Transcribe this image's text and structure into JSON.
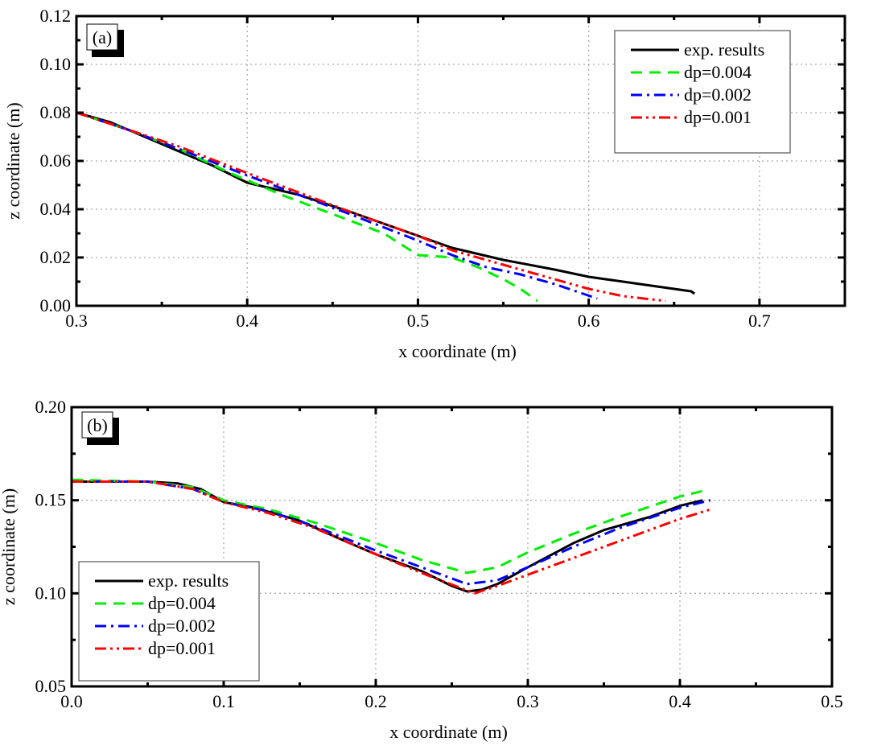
{
  "chart_data": [
    {
      "type": "line",
      "panel_label": "(a)",
      "xlabel": "x coordinate (m)",
      "ylabel": "z coordinate (m)",
      "xlim": [
        0.3,
        0.75
      ],
      "ylim": [
        0.0,
        0.12
      ],
      "xticks": [
        "0.3",
        "0.4",
        "0.5",
        "0.6",
        "0.7"
      ],
      "xtick_values": [
        0.3,
        0.4,
        0.5,
        0.6,
        0.7
      ],
      "yticks": [
        "0.00",
        "0.02",
        "0.04",
        "0.06",
        "0.08",
        "0.10",
        "0.12"
      ],
      "ytick_values": [
        0.0,
        0.02,
        0.04,
        0.06,
        0.08,
        0.1,
        0.12
      ],
      "grid": true,
      "legend_position": "top-right",
      "series": [
        {
          "name": "exp. results",
          "color": "#000000",
          "style": "solid",
          "x": [
            0.3,
            0.32,
            0.35,
            0.38,
            0.4,
            0.43,
            0.46,
            0.5,
            0.52,
            0.55,
            0.58,
            0.6,
            0.63,
            0.66,
            0.662
          ],
          "y": [
            0.08,
            0.076,
            0.067,
            0.058,
            0.051,
            0.046,
            0.039,
            0.029,
            0.024,
            0.019,
            0.015,
            0.012,
            0.009,
            0.006,
            0.005
          ]
        },
        {
          "name": "dp=0.004",
          "color": "#00ee00",
          "style": "dash",
          "x": [
            0.3,
            0.33,
            0.36,
            0.39,
            0.42,
            0.45,
            0.48,
            0.5,
            0.52,
            0.535,
            0.55,
            0.56,
            0.57
          ],
          "y": [
            0.08,
            0.073,
            0.065,
            0.055,
            0.046,
            0.038,
            0.03,
            0.021,
            0.02,
            0.016,
            0.011,
            0.007,
            0.002
          ]
        },
        {
          "name": "dp=0.002",
          "color": "#0000ff",
          "style": "dashdot",
          "x": [
            0.3,
            0.33,
            0.36,
            0.4,
            0.43,
            0.46,
            0.5,
            0.52,
            0.54,
            0.56,
            0.58,
            0.605
          ],
          "y": [
            0.08,
            0.073,
            0.065,
            0.054,
            0.046,
            0.038,
            0.027,
            0.021,
            0.016,
            0.013,
            0.009,
            0.003
          ]
        },
        {
          "name": "dp=0.001",
          "color": "#ff0000",
          "style": "dashdotdot",
          "x": [
            0.3,
            0.33,
            0.36,
            0.4,
            0.43,
            0.46,
            0.5,
            0.52,
            0.55,
            0.58,
            0.6,
            0.62,
            0.645
          ],
          "y": [
            0.08,
            0.073,
            0.066,
            0.055,
            0.047,
            0.039,
            0.029,
            0.023,
            0.017,
            0.011,
            0.007,
            0.004,
            0.002
          ]
        }
      ]
    },
    {
      "type": "line",
      "panel_label": "(b)",
      "xlabel": "x coordinate (m)",
      "ylabel": "z coordinate (m)",
      "xlim": [
        0.0,
        0.5
      ],
      "ylim": [
        0.05,
        0.2
      ],
      "xticks": [
        "0.0",
        "0.1",
        "0.2",
        "0.3",
        "0.4",
        "0.5"
      ],
      "xtick_values": [
        0.0,
        0.1,
        0.2,
        0.3,
        0.4,
        0.5
      ],
      "yticks": [
        "0.05",
        "0.10",
        "0.15",
        "0.20"
      ],
      "ytick_values": [
        0.05,
        0.1,
        0.15,
        0.2
      ],
      "grid": true,
      "legend_position": "bottom-left",
      "series": [
        {
          "name": "exp. results",
          "color": "#000000",
          "style": "solid",
          "x": [
            0.0,
            0.05,
            0.07,
            0.085,
            0.1,
            0.12,
            0.15,
            0.18,
            0.2,
            0.23,
            0.25,
            0.26,
            0.27,
            0.28,
            0.3,
            0.33,
            0.35,
            0.38,
            0.4,
            0.415
          ],
          "y": [
            0.16,
            0.16,
            0.159,
            0.156,
            0.149,
            0.146,
            0.139,
            0.128,
            0.121,
            0.112,
            0.104,
            0.101,
            0.102,
            0.105,
            0.114,
            0.127,
            0.134,
            0.141,
            0.147,
            0.15
          ]
        },
        {
          "name": "dp=0.004",
          "color": "#00ee00",
          "style": "dash",
          "x": [
            0.0,
            0.05,
            0.08,
            0.1,
            0.13,
            0.16,
            0.2,
            0.23,
            0.26,
            0.28,
            0.3,
            0.33,
            0.36,
            0.4,
            0.415
          ],
          "y": [
            0.161,
            0.16,
            0.157,
            0.15,
            0.145,
            0.138,
            0.127,
            0.118,
            0.111,
            0.114,
            0.122,
            0.132,
            0.141,
            0.152,
            0.155
          ]
        },
        {
          "name": "dp=0.002",
          "color": "#0000ff",
          "style": "dashdot",
          "x": [
            0.0,
            0.05,
            0.08,
            0.1,
            0.13,
            0.16,
            0.2,
            0.23,
            0.26,
            0.28,
            0.3,
            0.33,
            0.36,
            0.4,
            0.42
          ],
          "y": [
            0.16,
            0.16,
            0.156,
            0.149,
            0.144,
            0.136,
            0.123,
            0.114,
            0.105,
            0.107,
            0.114,
            0.125,
            0.135,
            0.146,
            0.15
          ]
        },
        {
          "name": "dp=0.001",
          "color": "#ff0000",
          "style": "dashdotdot",
          "x": [
            0.0,
            0.05,
            0.08,
            0.1,
            0.13,
            0.16,
            0.2,
            0.23,
            0.265,
            0.28,
            0.3,
            0.33,
            0.36,
            0.4,
            0.42
          ],
          "y": [
            0.16,
            0.16,
            0.156,
            0.149,
            0.143,
            0.135,
            0.121,
            0.111,
            0.1,
            0.104,
            0.11,
            0.119,
            0.128,
            0.14,
            0.145
          ]
        }
      ]
    }
  ]
}
